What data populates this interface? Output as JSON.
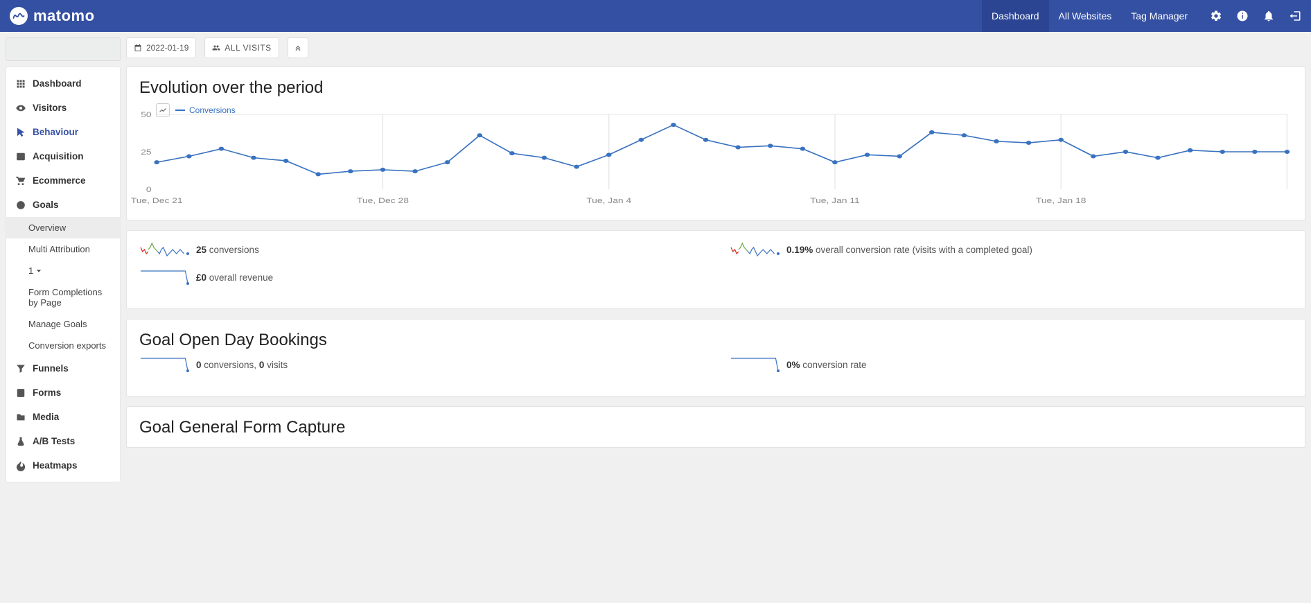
{
  "brand": "matomo",
  "topnav": {
    "dashboard": "Dashboard",
    "all_websites": "All Websites",
    "tag_manager": "Tag Manager"
  },
  "toolbar": {
    "date": "2022-01-19",
    "segment": "ALL VISITS"
  },
  "sidenav": {
    "dashboard": "Dashboard",
    "visitors": "Visitors",
    "behaviour": "Behaviour",
    "acquisition": "Acquisition",
    "ecommerce": "Ecommerce",
    "goals": {
      "label": "Goals",
      "overview": "Overview",
      "multi_attribution": "Multi Attribution",
      "menu_number": "1",
      "form_completions": "Form Completions by Page",
      "manage_goals": "Manage Goals",
      "conversion_exports": "Conversion exports"
    },
    "funnels": "Funnels",
    "forms": "Forms",
    "media": "Media",
    "ab_tests": "A/B Tests",
    "heatmaps": "Heatmaps"
  },
  "chart": {
    "title": "Evolution over the period",
    "legend_label": "Conversions",
    "type": "line",
    "line_color": "#3972c0",
    "marker_color": "#3972c0",
    "marker_radius": 3,
    "grid_color": "#e5e5e5",
    "axis_text_color": "#888888",
    "ylim": [
      0,
      50
    ],
    "yticks": [
      0,
      25,
      50
    ],
    "xlabels": [
      "Tue, Dec 21",
      "Tue, Dec 28",
      "Tue, Jan 4",
      "Tue, Jan 11",
      "Tue, Jan 18"
    ],
    "values": [
      18,
      22,
      27,
      21,
      19,
      10,
      12,
      13,
      12,
      18,
      36,
      24,
      21,
      15,
      23,
      33,
      43,
      33,
      28,
      29,
      27,
      18,
      23,
      22,
      38,
      36,
      32,
      31,
      33,
      22,
      25,
      21,
      26,
      25,
      25,
      25
    ]
  },
  "summary": {
    "conversions_value": "25",
    "conversions_label": " conversions",
    "revenue_value": "£0",
    "revenue_label": " overall revenue",
    "rate_value": "0.19%",
    "rate_label": " overall conversion rate (visits with a completed goal)"
  },
  "goal_open_day": {
    "title": "Goal Open Day Bookings",
    "conv_value": "0",
    "conv_label": " conversions, ",
    "visits_value": "0",
    "visits_label": " visits",
    "rate_value": "0%",
    "rate_label": " conversion rate"
  },
  "goal_general_form": {
    "title": "Goal General Form Capture"
  },
  "sparklines": {
    "colored": {
      "colors": [
        "#d4291f",
        "#6ba945",
        "#3972c0"
      ],
      "red": [
        14,
        12,
        13,
        11,
        12
      ],
      "green": [
        13,
        14,
        16,
        14,
        13,
        12
      ],
      "blue": [
        12,
        11,
        13,
        14,
        12,
        10,
        11,
        12,
        13,
        12,
        11,
        12,
        13,
        12,
        11
      ]
    },
    "flat": {
      "color": "#3972c0",
      "values": [
        12,
        12,
        12,
        12,
        12,
        12,
        12,
        12,
        12,
        12,
        12,
        12,
        12,
        12,
        12,
        12,
        12,
        12,
        12,
        10
      ]
    }
  }
}
